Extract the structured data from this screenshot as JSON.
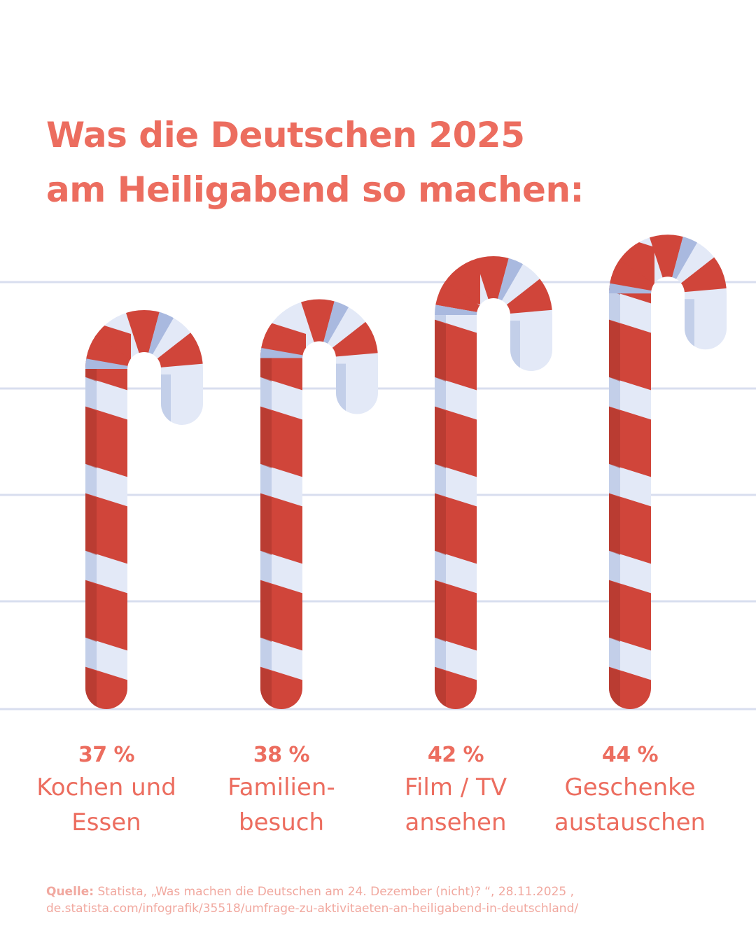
{
  "title": {
    "line1": "Was die Deutschen 2025",
    "line2": "am Heiligabend so machen:"
  },
  "colors": {
    "accent": "#ec6d5f",
    "stripe_red": "#d0453a",
    "stripe_white": "#e3e9f7",
    "stripe_shadow": "#a9b9df",
    "gridline": "#d8deef",
    "source_text": "#f1a89f"
  },
  "chart_data": {
    "type": "bar",
    "mark": "candy-cane",
    "categories": [
      "Kochen und Essen",
      "Familienbesuch",
      "Film / TV ansehen",
      "Geschenke austauschen"
    ],
    "values": [
      37,
      38,
      42,
      44
    ],
    "unit": "%",
    "grid": true,
    "legend": "none",
    "labels": [
      {
        "value_text": "37 %",
        "line1": "Kochen und",
        "line2": "Essen"
      },
      {
        "value_text": "38 %",
        "line1": "Familien-",
        "line2": "besuch"
      },
      {
        "value_text": "42 %",
        "line1": "Film / TV",
        "line2": "ansehen"
      },
      {
        "value_text": "44 %",
        "line1": "Geschenke",
        "line2": "austauschen"
      }
    ]
  },
  "source": {
    "prefix": "Quelle:",
    "line1": " Statista, „Was machen die Deutschen am 24. Dezember (nicht)? “, 28.11.2025 ,",
    "line2": "de.statista.com/infografik/35518/umfrage-zu-aktivitaeten-an-heiligabend-in-deutschland/"
  }
}
